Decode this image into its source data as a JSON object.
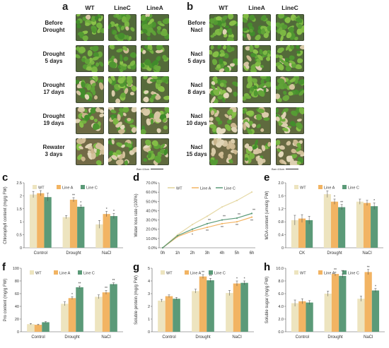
{
  "panel_a": {
    "letter": "a",
    "columns": [
      "WT",
      "LineC",
      "LineA"
    ],
    "rows": [
      [
        "Before",
        "Drought"
      ],
      [
        "Drought",
        "5 days"
      ],
      [
        "Drought",
        "17 days"
      ],
      [
        "Drought",
        "19 days"
      ],
      [
        "Rewater",
        "3 days"
      ]
    ],
    "health": [
      [
        0.95,
        0.95,
        0.95
      ],
      [
        0.9,
        0.92,
        0.92
      ],
      [
        0.7,
        0.8,
        0.82
      ],
      [
        0.35,
        0.55,
        0.6
      ],
      [
        0.25,
        0.55,
        0.65
      ]
    ],
    "scale_label": "Bar=10cm"
  },
  "panel_b": {
    "letter": "b",
    "columns": [
      "WT",
      "LineA",
      "LineC"
    ],
    "rows": [
      [
        "Before",
        "Nacl"
      ],
      [
        "Nacl",
        "5 days"
      ],
      [
        "Nacl",
        "8 days"
      ],
      [
        "Nacl",
        "10 days"
      ],
      [
        "Nacl",
        "15 days"
      ]
    ],
    "health": [
      [
        0.95,
        0.95,
        0.95
      ],
      [
        0.9,
        0.92,
        0.92
      ],
      [
        0.72,
        0.82,
        0.8
      ],
      [
        0.5,
        0.65,
        0.62
      ],
      [
        0.3,
        0.5,
        0.45
      ]
    ],
    "scale_label": "Bar=10cm"
  },
  "colors": {
    "wt": "#ede4bf",
    "lineA": "#f2b463",
    "lineC": "#5b9a78",
    "axis": "#555555"
  },
  "chart_data": [
    {
      "id": "c",
      "letter": "c",
      "type": "bar",
      "ylabel": "Chlorophyll content (mg/g FW)",
      "categories": [
        "Control",
        "Drought",
        "NaCl"
      ],
      "ylim": [
        0,
        2.5
      ],
      "yticks": [
        0,
        0.5,
        1,
        1.5,
        2,
        2.5
      ],
      "legend": [
        "WT",
        "Line A",
        "Line C"
      ],
      "series": [
        {
          "name": "WT",
          "values": [
            2.05,
            1.18,
            0.9
          ],
          "err": [
            0.12,
            0.06,
            0.15
          ]
        },
        {
          "name": "Line A",
          "values": [
            2.1,
            1.85,
            1.3
          ],
          "err": [
            0.1,
            0.08,
            0.1
          ]
        },
        {
          "name": "Line C",
          "values": [
            1.95,
            1.58,
            1.22
          ],
          "err": [
            0.15,
            0.06,
            0.1
          ]
        }
      ],
      "sig": [
        [
          "",
          "",
          ""
        ],
        [
          "",
          "**",
          "*"
        ],
        [
          "",
          "*",
          "*"
        ]
      ]
    },
    {
      "id": "d",
      "letter": "d",
      "type": "line",
      "ylabel": "Water loss rate (100%)",
      "x": [
        "0h",
        "1h",
        "2h",
        "3h",
        "4h",
        "5h",
        "6h"
      ],
      "ylim": [
        0,
        70
      ],
      "yticks": [
        0,
        10,
        20,
        30,
        40,
        50,
        60,
        70
      ],
      "ytick_labels": [
        "0.0%",
        "10.0%",
        "20.0%",
        "30.0%",
        "40.0%",
        "50.0%",
        "60.0%",
        "70.0%"
      ],
      "legend": [
        "WT",
        "Line A",
        "Line C"
      ],
      "series": [
        {
          "name": "WT",
          "values": [
            0,
            14,
            25,
            34,
            44,
            51,
            60
          ]
        },
        {
          "name": "Line A",
          "values": [
            0,
            12,
            18,
            22,
            26,
            28,
            33
          ]
        },
        {
          "name": "Line C",
          "values": [
            0,
            13,
            20,
            26,
            30,
            32,
            37
          ]
        }
      ],
      "sig_a": [
        "",
        "",
        "*",
        "**",
        "**",
        "**",
        "**"
      ],
      "sig_c": [
        "",
        "",
        "",
        "**",
        "**",
        "**",
        "**"
      ]
    },
    {
      "id": "e",
      "letter": "e",
      "type": "bar",
      "ylabel": "MDA content (umol/g FW)",
      "categories": [
        "CK",
        "Drought",
        "NaCl"
      ],
      "ylim": [
        0,
        2.0
      ],
      "yticks": [
        0,
        0.4,
        0.8,
        1.2,
        1.6,
        2.0
      ],
      "ytick_labels": [
        "0",
        "0.4",
        "0.8",
        "1.2",
        "1.6",
        "2.0"
      ],
      "legend": [
        "WT",
        "Line A",
        "Line C"
      ],
      "series": [
        {
          "name": "WT",
          "values": [
            0.85,
            1.65,
            1.42
          ],
          "err": [
            0.15,
            0.1,
            0.08
          ]
        },
        {
          "name": "Line A",
          "values": [
            0.9,
            1.42,
            1.38
          ],
          "err": [
            0.12,
            0.08,
            0.08
          ]
        },
        {
          "name": "Line C",
          "values": [
            0.85,
            1.25,
            1.28
          ],
          "err": [
            0.12,
            0.08,
            0.1
          ]
        }
      ],
      "sig": [
        [
          "",
          "",
          ""
        ],
        [
          "",
          "*",
          "**"
        ],
        [
          "",
          "",
          "*"
        ]
      ]
    },
    {
      "id": "f",
      "letter": "f",
      "type": "bar",
      "ylabel": "Pro content (mg/g FW)",
      "categories": [
        "Control",
        "Drought",
        "NaCl"
      ],
      "ylim": [
        0,
        100
      ],
      "yticks": [
        0,
        20,
        40,
        60,
        80,
        100
      ],
      "legend": [
        "WT",
        "Line A",
        "Line C"
      ],
      "series": [
        {
          "name": "WT",
          "values": [
            12,
            44,
            55
          ],
          "err": [
            1,
            3,
            3
          ]
        },
        {
          "name": "Line A",
          "values": [
            11,
            53,
            62
          ],
          "err": [
            1,
            2,
            3
          ]
        },
        {
          "name": "Line C",
          "values": [
            15,
            70,
            75
          ],
          "err": [
            1,
            2,
            2
          ]
        }
      ],
      "sig": [
        [
          "",
          "",
          ""
        ],
        [
          "",
          "*",
          "**"
        ],
        [
          "",
          "**",
          "**"
        ]
      ]
    },
    {
      "id": "g",
      "letter": "g",
      "type": "bar",
      "ylabel": "Soluble protein (mg/g FW)",
      "categories": [
        "Control",
        "Drought",
        "NaCl"
      ],
      "ylim": [
        0,
        5
      ],
      "yticks": [
        0,
        1,
        2,
        3,
        4,
        5
      ],
      "legend": [
        "WT",
        "Line A",
        "Line C"
      ],
      "series": [
        {
          "name": "WT",
          "values": [
            2.45,
            3.2,
            3.05
          ],
          "err": [
            0.1,
            0.15,
            0.2
          ]
        },
        {
          "name": "Line A",
          "values": [
            2.8,
            4.35,
            3.8
          ],
          "err": [
            0.1,
            0.15,
            0.2
          ]
        },
        {
          "name": "Line C",
          "values": [
            2.6,
            4.05,
            3.85
          ],
          "err": [
            0.1,
            0.15,
            0.15
          ]
        }
      ],
      "sig": [
        [
          "",
          "",
          ""
        ],
        [
          "",
          "**",
          "**"
        ],
        [
          "",
          "*",
          "*"
        ]
      ]
    },
    {
      "id": "h",
      "letter": "h",
      "type": "bar",
      "ylabel": "Soluble sugar (mg/g FW)",
      "categories": [
        "Control",
        "Drought",
        "NaCl"
      ],
      "ylim": [
        0,
        10
      ],
      "yticks": [
        0,
        2,
        4,
        6,
        8,
        10
      ],
      "ytick_labels": [
        "0.0",
        "2.0",
        "4.0",
        "6.0",
        "8.0",
        "10.0"
      ],
      "legend": [
        "WT",
        "Line A",
        "Line C"
      ],
      "series": [
        {
          "name": "WT",
          "values": [
            4.5,
            6.0,
            5.2
          ],
          "err": [
            0.5,
            0.4,
            0.4
          ]
        },
        {
          "name": "Line A",
          "values": [
            4.8,
            9.1,
            9.4
          ],
          "err": [
            0.4,
            0.3,
            0.4
          ]
        },
        {
          "name": "Line C",
          "values": [
            4.6,
            8.8,
            6.5
          ],
          "err": [
            0.3,
            0.3,
            0.3
          ]
        }
      ],
      "sig": [
        [
          "",
          "",
          ""
        ],
        [
          "",
          "**",
          "**"
        ],
        [
          "",
          "**",
          "*"
        ]
      ]
    }
  ]
}
